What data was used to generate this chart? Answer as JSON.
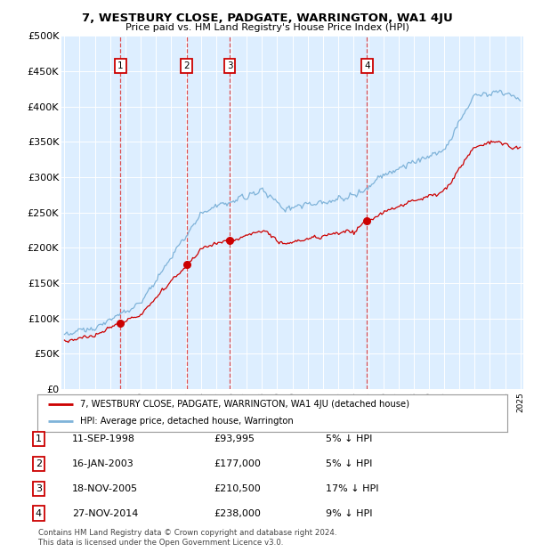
{
  "title": "7, WESTBURY CLOSE, PADGATE, WARRINGTON, WA1 4JU",
  "subtitle": "Price paid vs. HM Land Registry's House Price Index (HPI)",
  "background_color": "#ffffff",
  "plot_bg_color": "#ddeeff",
  "grid_color": "#ffffff",
  "ylim": [
    0,
    500000
  ],
  "yticks": [
    0,
    50000,
    100000,
    150000,
    200000,
    250000,
    300000,
    350000,
    400000,
    450000,
    500000
  ],
  "ytick_labels": [
    "£0",
    "£50K",
    "£100K",
    "£150K",
    "£200K",
    "£250K",
    "£300K",
    "£350K",
    "£400K",
    "£450K",
    "£500K"
  ],
  "sale_dates_num": [
    1998.69,
    2003.04,
    2005.88,
    2014.91
  ],
  "sale_prices": [
    93995,
    177000,
    210500,
    238000
  ],
  "sale_labels": [
    "1",
    "2",
    "3",
    "4"
  ],
  "vline_color": "#dd3333",
  "sale_marker_color": "#cc0000",
  "hpi_line_color": "#7fb3d9",
  "price_line_color": "#cc0000",
  "legend_entries": [
    "7, WESTBURY CLOSE, PADGATE, WARRINGTON, WA1 4JU (detached house)",
    "HPI: Average price, detached house, Warrington"
  ],
  "table_rows": [
    [
      "1",
      "11-SEP-1998",
      "£93,995",
      "5% ↓ HPI"
    ],
    [
      "2",
      "16-JAN-2003",
      "£177,000",
      "5% ↓ HPI"
    ],
    [
      "3",
      "18-NOV-2005",
      "£210,500",
      "17% ↓ HPI"
    ],
    [
      "4",
      "27-NOV-2014",
      "£238,000",
      "9% ↓ HPI"
    ]
  ],
  "footer": "Contains HM Land Registry data © Crown copyright and database right 2024.\nThis data is licensed under the Open Government Licence v3.0."
}
